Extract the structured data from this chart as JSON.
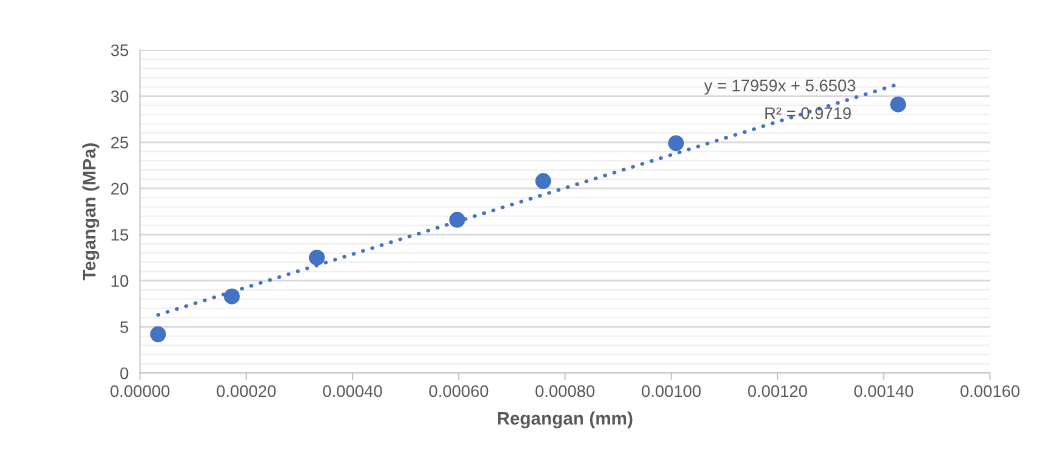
{
  "chart_data": {
    "type": "scatter",
    "xlabel": "Regangan (mm)",
    "ylabel": "Tegangan (MPa)",
    "xlim": [
      0,
      0.0016
    ],
    "ylim": [
      0,
      35
    ],
    "xticks": [
      {
        "value": 0,
        "label": "0.00000"
      },
      {
        "value": 0.0002,
        "label": "0.00020"
      },
      {
        "value": 0.0004,
        "label": "0.00040"
      },
      {
        "value": 0.0006,
        "label": "0.00060"
      },
      {
        "value": 0.0008,
        "label": "0.00080"
      },
      {
        "value": 0.001,
        "label": "0.00100"
      },
      {
        "value": 0.0012,
        "label": "0.00120"
      },
      {
        "value": 0.0014,
        "label": "0.00140"
      },
      {
        "value": 0.0016,
        "label": "0.00160"
      }
    ],
    "yticks": [
      0,
      5,
      10,
      15,
      20,
      25,
      30,
      35
    ],
    "grid": "y",
    "marker": "circle",
    "series": [
      {
        "color": "#4472c4",
        "x": [
          3.4e-05,
          0.000173,
          0.000333,
          0.000597,
          0.000759,
          0.001009,
          0.001427
        ],
        "values": [
          4.2,
          8.3,
          12.5,
          16.6,
          20.8,
          24.9,
          29.1
        ]
      },
      {
        "type": "line",
        "color": "#4472c4",
        "line_style": "dotted",
        "marker": "none",
        "x": [
          3.4e-05,
          0.001427
        ],
        "values": [
          6.3,
          31.3
        ]
      }
    ],
    "annotations": [
      "y = 17959x + 5.6503",
      "R² = 0.9719"
    ]
  }
}
